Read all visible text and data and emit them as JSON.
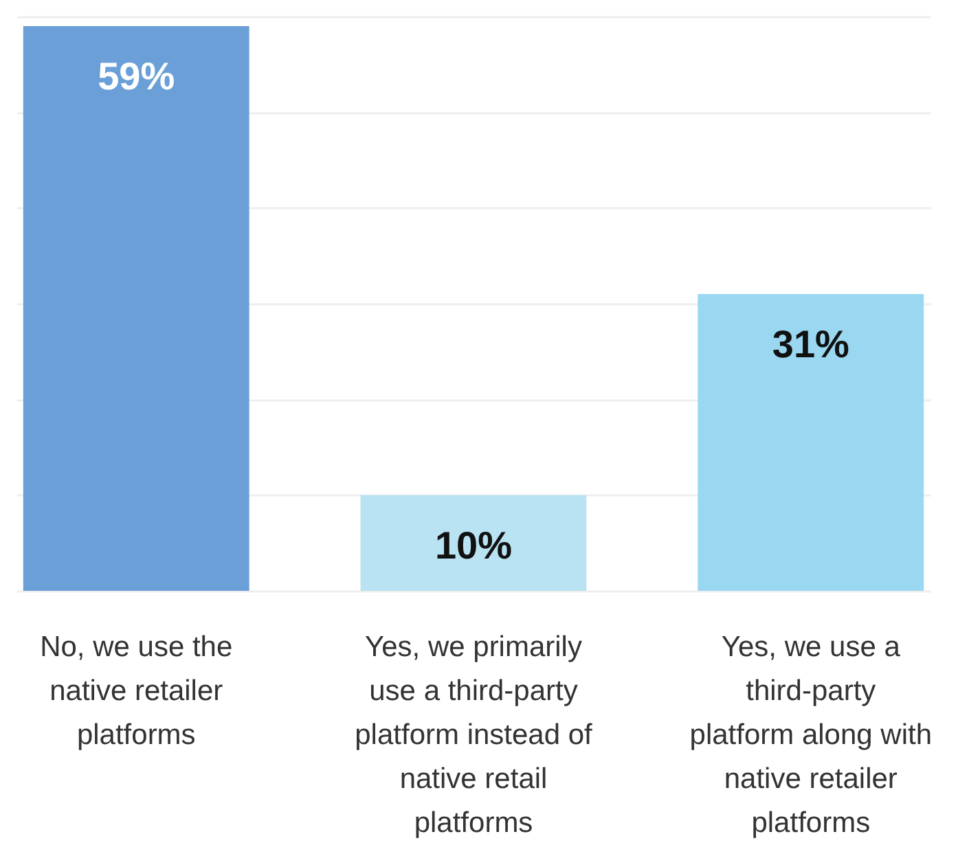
{
  "chart_data": {
    "type": "bar",
    "categories": [
      "No, we use the native retailer platforms",
      "Yes, we primarily use a third-party platform instead of native retail platforms",
      "Yes, we use a third-party platform along with native retailer platforms"
    ],
    "values": [
      59,
      10,
      31
    ],
    "colors": [
      "#6a9fd8",
      "#b9e2f3",
      "#99d8f0"
    ],
    "ylim": [
      0,
      60
    ],
    "yticks": [
      {
        "value": 0,
        "label": null
      },
      {
        "value": 10,
        "label": null
      },
      {
        "value": 20,
        "label": null
      },
      {
        "value": 30,
        "label": null
      },
      {
        "value": 40,
        "label": null
      },
      {
        "value": 50,
        "label": null
      },
      {
        "value": 60,
        "label": null
      }
    ],
    "grid": "y",
    "tick_labels": "x",
    "value_labels": [
      "59%",
      "10%",
      "31%"
    ]
  }
}
